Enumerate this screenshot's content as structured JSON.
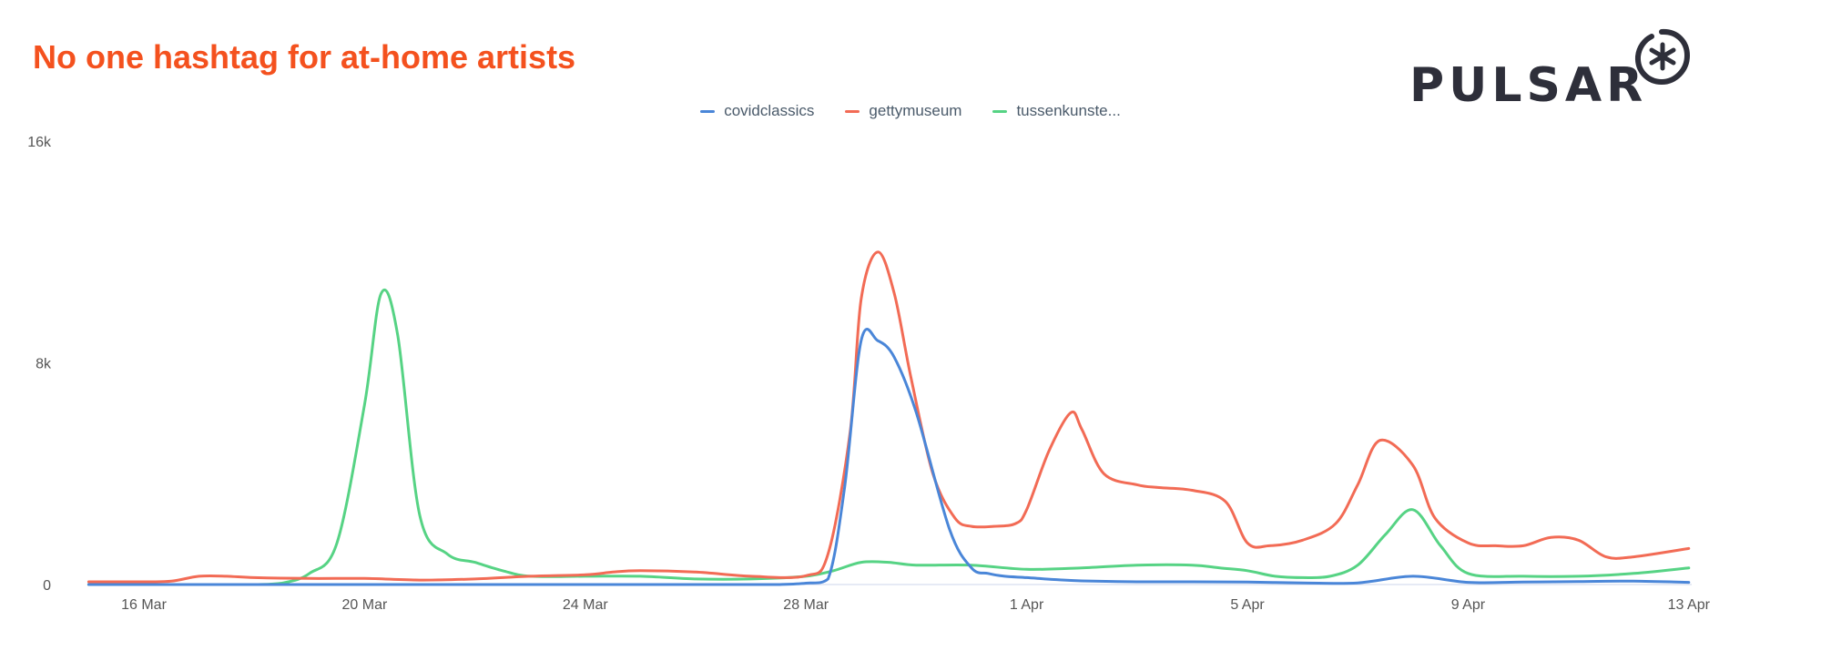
{
  "header": {
    "title": "No one hashtag for at-home artists"
  },
  "logo": {
    "text": "PULSAR",
    "mark_icon": "asterisk-circle-icon"
  },
  "colors": {
    "title": "#f4511e",
    "covidclassics": "#4a86d8",
    "gettymuseum": "#f26b55",
    "tussenkunste": "#56d384"
  },
  "chart_data": {
    "type": "line",
    "title": "No one hashtag for at-home artists",
    "xlabel": "",
    "ylabel": "",
    "x_range": [
      15,
      44
    ],
    "ylim": [
      0,
      16000
    ],
    "y_ticks": [
      0,
      8000,
      16000
    ],
    "y_tick_labels": [
      "0",
      "8k",
      "16k"
    ],
    "x_ticks": [
      16,
      20,
      24,
      28,
      32,
      36,
      40,
      44
    ],
    "x_tick_labels": [
      "16 Mar",
      "20 Mar",
      "24 Mar",
      "28 Mar",
      "1 Apr",
      "5 Apr",
      "9 Apr",
      "13 Apr"
    ],
    "legend_position": "top-center",
    "grid": false,
    "series": [
      {
        "name": "covidclassics",
        "color": "#4a86d8",
        "x": [
          15,
          16,
          17,
          18,
          19,
          20,
          21,
          22,
          23,
          24,
          25,
          26,
          27,
          27.5,
          28,
          28.4,
          28.7,
          29,
          29.3,
          29.6,
          30,
          30.6,
          31,
          31.3,
          31.6,
          32,
          32.5,
          33,
          34,
          35,
          36,
          37,
          38,
          39,
          40,
          41,
          42,
          43,
          44
        ],
        "y": [
          0,
          0,
          0,
          0,
          0,
          0,
          0,
          0,
          0,
          0,
          0,
          0,
          0,
          0,
          50,
          200,
          3500,
          8800,
          8800,
          8200,
          6200,
          2000,
          600,
          400,
          300,
          250,
          180,
          130,
          100,
          100,
          90,
          60,
          60,
          300,
          80,
          90,
          110,
          120,
          80
        ]
      },
      {
        "name": "gettymuseum",
        "color": "#f26b55",
        "x": [
          15,
          16,
          16.5,
          17,
          17.5,
          18,
          19,
          20,
          21,
          22,
          23,
          24,
          24.5,
          25,
          26,
          27,
          28,
          28.4,
          28.8,
          29,
          29.3,
          29.6,
          29.9,
          30.3,
          30.7,
          31,
          31.4,
          31.8,
          32,
          32.4,
          32.8,
          33,
          33.4,
          34,
          34.4,
          35,
          35.6,
          36,
          36.4,
          37,
          37.6,
          38,
          38.4,
          39,
          39.4,
          40,
          40.5,
          41,
          41.5,
          42,
          42.5,
          43,
          44
        ],
        "y": [
          100,
          100,
          120,
          300,
          300,
          250,
          220,
          220,
          160,
          200,
          300,
          350,
          450,
          500,
          450,
          300,
          320,
          1100,
          5500,
          10300,
          12000,
          10500,
          7500,
          4000,
          2400,
          2100,
          2100,
          2200,
          2700,
          4800,
          6200,
          5600,
          4000,
          3600,
          3500,
          3400,
          3000,
          1500,
          1400,
          1600,
          2200,
          3600,
          5200,
          4300,
          2400,
          1500,
          1400,
          1400,
          1700,
          1600,
          1000,
          1000,
          1300
        ]
      },
      {
        "name": "tussenkunste...",
        "color": "#56d384",
        "x": [
          15,
          16,
          17,
          18,
          18.5,
          19,
          19.5,
          20,
          20.3,
          20.6,
          21,
          21.5,
          22,
          22.5,
          23,
          24,
          25,
          26,
          27,
          28,
          28.5,
          29,
          29.5,
          30,
          31,
          32,
          33,
          34,
          35,
          35.5,
          36,
          36.5,
          37,
          37.5,
          38,
          38.5,
          39,
          39.5,
          40,
          41,
          42,
          43,
          44
        ],
        "y": [
          0,
          0,
          0,
          0,
          50,
          400,
          1500,
          6500,
          10500,
          9000,
          2500,
          1100,
          800,
          500,
          300,
          300,
          300,
          200,
          200,
          300,
          500,
          800,
          800,
          700,
          700,
          550,
          600,
          700,
          700,
          600,
          500,
          300,
          250,
          300,
          700,
          1800,
          2700,
          1400,
          400,
          300,
          300,
          400,
          600
        ]
      }
    ]
  }
}
